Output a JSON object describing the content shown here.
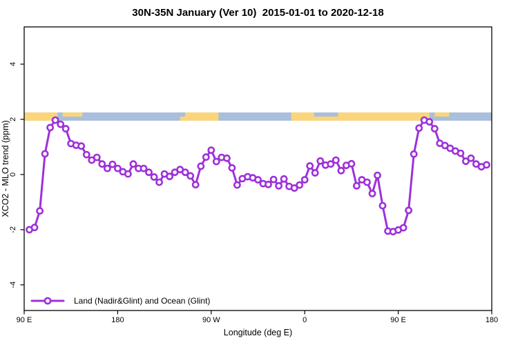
{
  "page": {
    "background": "#ffffff"
  },
  "chart_data": {
    "type": "line",
    "title": "30N-35N January (Ver 10)  2015-01-01 to 2020-12-18",
    "xlabel": "Longitude (deg E)",
    "ylabel": "XCO2 - MLO trend (ppm)",
    "xlim": [
      90,
      540
    ],
    "ylim": [
      -4.93,
      5.35
    ],
    "grid": false,
    "x_ticks": [
      {
        "value": 90,
        "label": "90 E"
      },
      {
        "value": 180,
        "label": "180"
      },
      {
        "value": 270,
        "label": "90 W"
      },
      {
        "value": 360,
        "label": "0"
      },
      {
        "value": 450,
        "label": "90 E"
      },
      {
        "value": 540,
        "label": "180"
      }
    ],
    "y_ticks": [
      {
        "value": -4,
        "label": "-4"
      },
      {
        "value": -2,
        "label": "-2"
      },
      {
        "value": 0,
        "label": "0"
      },
      {
        "value": 2,
        "label": "2"
      },
      {
        "value": 4,
        "label": "4"
      }
    ],
    "legend_position": "bottom-left",
    "series": [
      {
        "name": "Land (Nadir&Glint) and Ocean (Glint)",
        "color": "#9E30D9",
        "marker": "open-circle",
        "points": [
          [
            95,
            -2.0
          ],
          [
            100,
            -1.92
          ],
          [
            105,
            -1.32
          ],
          [
            110,
            0.75
          ],
          [
            115,
            1.7
          ],
          [
            120,
            1.97
          ],
          [
            125,
            1.82
          ],
          [
            130,
            1.66
          ],
          [
            135,
            1.12
          ],
          [
            140,
            1.06
          ],
          [
            145,
            1.03
          ],
          [
            150,
            0.72
          ],
          [
            155,
            0.52
          ],
          [
            160,
            0.62
          ],
          [
            165,
            0.38
          ],
          [
            170,
            0.22
          ],
          [
            175,
            0.37
          ],
          [
            180,
            0.22
          ],
          [
            185,
            0.1
          ],
          [
            190,
            0.02
          ],
          [
            195,
            0.38
          ],
          [
            200,
            0.22
          ],
          [
            205,
            0.22
          ],
          [
            210,
            0.08
          ],
          [
            215,
            -0.09
          ],
          [
            220,
            -0.28
          ],
          [
            225,
            0.02
          ],
          [
            230,
            -0.07
          ],
          [
            235,
            0.08
          ],
          [
            240,
            0.18
          ],
          [
            245,
            0.08
          ],
          [
            250,
            -0.05
          ],
          [
            255,
            -0.37
          ],
          [
            260,
            0.3
          ],
          [
            265,
            0.63
          ],
          [
            270,
            0.88
          ],
          [
            275,
            0.47
          ],
          [
            280,
            0.62
          ],
          [
            285,
            0.59
          ],
          [
            290,
            0.24
          ],
          [
            295,
            -0.38
          ],
          [
            300,
            -0.15
          ],
          [
            305,
            -0.08
          ],
          [
            310,
            -0.12
          ],
          [
            315,
            -0.19
          ],
          [
            320,
            -0.33
          ],
          [
            325,
            -0.36
          ],
          [
            330,
            -0.18
          ],
          [
            335,
            -0.41
          ],
          [
            340,
            -0.16
          ],
          [
            345,
            -0.43
          ],
          [
            350,
            -0.49
          ],
          [
            355,
            -0.38
          ],
          [
            360,
            -0.19
          ],
          [
            365,
            0.31
          ],
          [
            370,
            0.06
          ],
          [
            375,
            0.49
          ],
          [
            380,
            0.34
          ],
          [
            385,
            0.38
          ],
          [
            390,
            0.52
          ],
          [
            395,
            0.14
          ],
          [
            400,
            0.33
          ],
          [
            405,
            0.39
          ],
          [
            410,
            -0.41
          ],
          [
            415,
            -0.19
          ],
          [
            420,
            -0.28
          ],
          [
            425,
            -0.69
          ],
          [
            430,
            -0.03
          ],
          [
            435,
            -1.13
          ],
          [
            440,
            -2.05
          ],
          [
            445,
            -2.07
          ],
          [
            450,
            -2.01
          ],
          [
            455,
            -1.93
          ],
          [
            460,
            -1.3
          ],
          [
            465,
            0.74
          ],
          [
            470,
            1.68
          ],
          [
            475,
            1.97
          ],
          [
            480,
            1.91
          ],
          [
            485,
            1.66
          ],
          [
            490,
            1.13
          ],
          [
            495,
            1.05
          ],
          [
            500,
            0.95
          ],
          [
            505,
            0.85
          ],
          [
            510,
            0.77
          ],
          [
            515,
            0.48
          ],
          [
            520,
            0.59
          ],
          [
            525,
            0.38
          ],
          [
            530,
            0.28
          ],
          [
            535,
            0.35
          ]
        ]
      }
    ],
    "map_strip": {
      "v_top": 2.25,
      "v_bottom": 1.95,
      "land_color": "#FBD57C",
      "ocean_color": "#A9BFDB",
      "land_segments": [
        {
          "from": 90,
          "to": 122,
          "part": "full"
        },
        {
          "from": 127,
          "to": 146,
          "part": "top"
        },
        {
          "from": 240,
          "to": 246,
          "part": "bottom"
        },
        {
          "from": 245,
          "to": 277,
          "part": "full"
        },
        {
          "from": 347,
          "to": 369,
          "part": "full"
        },
        {
          "from": 369,
          "to": 392,
          "part": "bottom"
        },
        {
          "from": 392,
          "to": 480,
          "part": "full"
        },
        {
          "from": 485,
          "to": 499,
          "part": "top"
        }
      ]
    }
  }
}
